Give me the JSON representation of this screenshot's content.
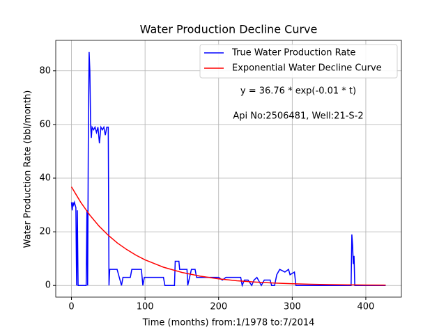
{
  "chart_data": {
    "type": "line",
    "title": "Water Production Decline Curve",
    "xlabel": "Time (months) from:1/1978 to:7/2014",
    "ylabel": "Water Production Rate (bbl/month)",
    "annotations": [
      "y = 36.76 * exp(-0.01 * t)",
      "Api No:2506481, Well:21-S-2"
    ],
    "xlim": [
      -21.35,
      448.35
    ],
    "ylim": [
      -4.35,
      91.35
    ],
    "xticks": [
      0,
      100,
      200,
      300,
      400
    ],
    "yticks": [
      0,
      20,
      40,
      60,
      80
    ],
    "grid": true,
    "legend": "upper right",
    "series": [
      {
        "name": "True Water Production Rate",
        "color": "#0000ff",
        "x": [
          0,
          1,
          2,
          3,
          4,
          5,
          6,
          7,
          8,
          9,
          20,
          21,
          22,
          23,
          24,
          25,
          26,
          27,
          28,
          30,
          32,
          34,
          36,
          38,
          40,
          42,
          44,
          46,
          48,
          50,
          51,
          52,
          62,
          65,
          68,
          70,
          80,
          82,
          95,
          97,
          99,
          125,
          127,
          140,
          141,
          146,
          147,
          157,
          158,
          163,
          168,
          170,
          200,
          205,
          210,
          230,
          232,
          235,
          240,
          245,
          248,
          252,
          258,
          262,
          270,
          272,
          276,
          279,
          283,
          290,
          295,
          297,
          303,
          305,
          380,
          381,
          382,
          383,
          384,
          385,
          427
        ],
        "values": [
          31,
          28,
          31,
          30,
          31,
          30,
          29,
          0,
          28,
          0,
          0,
          28,
          0,
          60,
          87,
          80,
          60,
          55,
          59,
          58,
          59,
          57,
          59,
          53,
          59,
          58,
          59,
          56,
          59,
          59,
          0,
          6,
          6,
          3,
          0,
          3,
          3,
          6,
          6,
          0,
          3,
          3,
          0,
          0,
          9,
          9,
          6,
          6,
          0,
          6,
          6,
          3,
          3,
          2,
          3,
          3,
          0,
          2,
          2,
          0,
          2,
          3,
          0,
          2,
          2,
          0,
          0,
          4,
          6,
          5,
          6,
          4,
          5,
          0,
          0,
          19,
          15,
          8,
          11,
          0,
          0
        ]
      },
      {
        "name": "Exponential Water Decline Curve",
        "color": "#ff0000",
        "x": [
          0,
          12.5,
          25,
          37.5,
          50,
          62.5,
          75,
          87.5,
          100,
          125,
          150,
          175,
          200,
          225,
          250,
          275,
          300,
          325,
          350,
          375,
          400,
          427
        ],
        "values": [
          36.76,
          31.04,
          26.2,
          22.12,
          18.7,
          15.8,
          13.4,
          11.3,
          9.55,
          6.8,
          4.86,
          3.47,
          2.47,
          1.76,
          1.26,
          0.9,
          0.64,
          0.46,
          0.33,
          0.23,
          0.17,
          0.11
        ]
      }
    ]
  }
}
